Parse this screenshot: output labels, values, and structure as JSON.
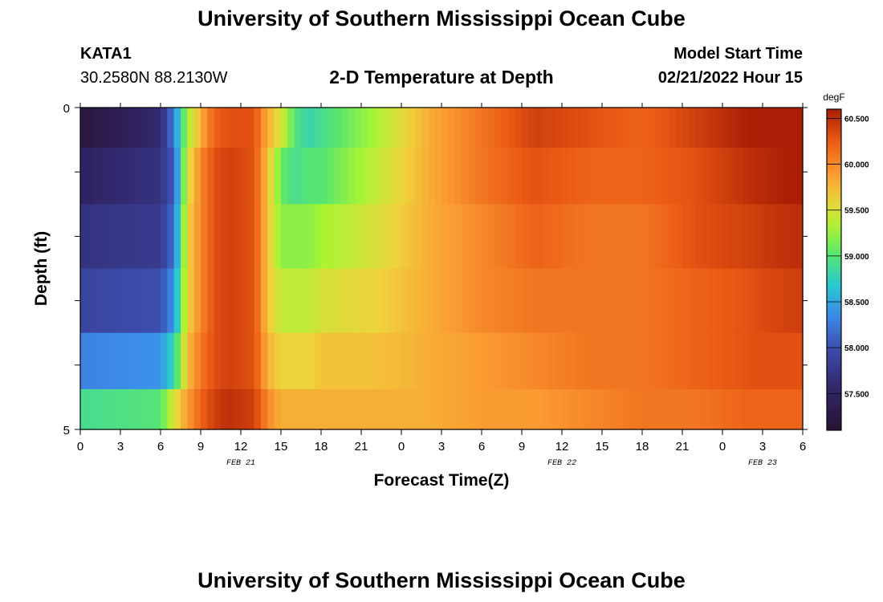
{
  "header": {
    "title": "University of Southern Mississippi Ocean Cube",
    "station_id": "KATA1",
    "station_coords": "30.2580N  88.2130W",
    "plot_title": "2-D Temperature at Depth",
    "start_label": "Model Start Time",
    "start_value": "02/21/2022 Hour 15"
  },
  "footer": {
    "title": "University of Southern Mississippi Ocean Cube"
  },
  "chart_data": {
    "type": "heatmap",
    "xlabel": "Forecast Time(Z)",
    "ylabel": "Depth (ft)",
    "x_tick_labels": [
      "0",
      "3",
      "6",
      "9",
      "12",
      "15",
      "18",
      "21",
      "0",
      "3",
      "6",
      "9",
      "12",
      "15",
      "18",
      "21",
      "0",
      "3",
      "6"
    ],
    "date_labels": [
      {
        "label": "FEB 21",
        "hour": 12
      },
      {
        "label": "FEB 22",
        "hour": 36
      },
      {
        "label": "FEB 23",
        "hour": 51
      }
    ],
    "x_range_hours": [
      0,
      54
    ],
    "y_tick_labels": [
      "0",
      "5"
    ],
    "y_range": [
      0,
      5
    ],
    "colorbar": {
      "unit": "degF",
      "tick_labels": [
        "60.500",
        "60.000",
        "59.500",
        "59.000",
        "58.500",
        "58.000",
        "57.500"
      ],
      "range": [
        57.1,
        60.6
      ]
    },
    "depth_levels": [
      0.25,
      1.0,
      2.0,
      3.0,
      4.0,
      4.75
    ],
    "time_nodes": [
      0,
      6,
      7,
      8,
      9,
      10,
      11,
      13,
      14,
      15,
      16,
      17,
      18,
      22,
      26,
      30,
      34,
      38,
      42,
      46,
      50,
      53,
      54
    ],
    "temperature_degF": [
      [
        57.2,
        57.6,
        58.3,
        59.3,
        59.8,
        60.2,
        60.3,
        60.3,
        59.8,
        59.5,
        59.0,
        58.8,
        58.9,
        59.3,
        59.8,
        60.1,
        60.4,
        60.3,
        60.2,
        60.4,
        60.6,
        60.7,
        60.8
      ],
      [
        57.5,
        57.7,
        58.1,
        59.5,
        60.0,
        60.3,
        60.4,
        60.3,
        59.7,
        59.1,
        58.9,
        59.0,
        59.0,
        59.4,
        59.8,
        60.1,
        60.3,
        60.2,
        60.2,
        60.3,
        60.5,
        60.6,
        60.6
      ],
      [
        57.7,
        57.8,
        58.2,
        59.6,
        60.0,
        60.3,
        60.4,
        60.3,
        59.7,
        59.2,
        59.2,
        59.2,
        59.3,
        59.5,
        59.8,
        60.0,
        60.2,
        60.1,
        60.1,
        60.3,
        60.4,
        60.5,
        60.5
      ],
      [
        57.9,
        58.0,
        58.4,
        59.6,
        60.0,
        60.3,
        60.4,
        60.3,
        59.7,
        59.4,
        59.4,
        59.4,
        59.5,
        59.6,
        59.8,
        60.0,
        60.1,
        60.1,
        60.1,
        60.2,
        60.3,
        60.4,
        60.4
      ],
      [
        58.3,
        58.4,
        58.8,
        59.7,
        60.1,
        60.3,
        60.4,
        60.3,
        59.8,
        59.6,
        59.6,
        59.6,
        59.7,
        59.7,
        59.8,
        59.9,
        60.0,
        60.1,
        60.1,
        60.2,
        60.3,
        60.3,
        60.3
      ],
      [
        58.9,
        59.0,
        59.5,
        59.9,
        60.2,
        60.4,
        60.5,
        60.4,
        60.0,
        59.8,
        59.8,
        59.8,
        59.8,
        59.8,
        59.8,
        59.9,
        59.9,
        60.0,
        60.1,
        60.1,
        60.2,
        60.2,
        60.2
      ]
    ]
  }
}
